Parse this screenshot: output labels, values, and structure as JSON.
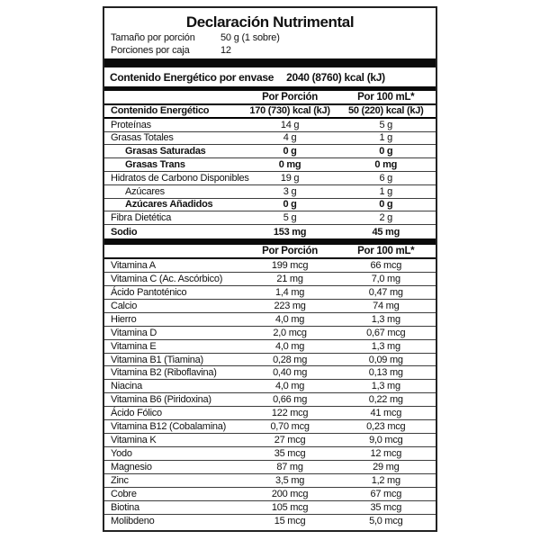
{
  "label": {
    "title": "Declaración Nutrimental",
    "serving_size": {
      "label": "Tamaño por porción",
      "value": "50 g (1 sobre)"
    },
    "servings_per_box": {
      "label": "Porciones por caja",
      "value": "12"
    },
    "energy_per_package": {
      "label": "Contenido Energético por envase",
      "value": "2040 (8760) kcal (kJ)"
    },
    "columns": {
      "per_portion": "Por Porción",
      "per_100ml": "Por 100 mL*"
    },
    "main_table": {
      "rows": [
        {
          "name": "Contenido Energético",
          "v1": "170 (730) kcal (kJ)",
          "v2": "50 (220) kcal (kJ)",
          "bold": true,
          "indent": 0,
          "sep": "thick"
        },
        {
          "name": "Proteínas",
          "v1": "14 g",
          "v2": "5 g",
          "bold": false,
          "indent": 0,
          "sep": "thin"
        },
        {
          "name": "Grasas Totales",
          "v1": "4 g",
          "v2": "1 g",
          "bold": false,
          "indent": 0,
          "sep": "thin"
        },
        {
          "name": "Grasas Saturadas",
          "v1": "0 g",
          "v2": "0 g",
          "bold": true,
          "indent": 1,
          "sep": "thin"
        },
        {
          "name": "Grasas Trans",
          "v1": "0 mg",
          "v2": "0 mg",
          "bold": true,
          "indent": 1,
          "sep": "thin"
        },
        {
          "name": "Hidratos de Carbono Disponibles",
          "v1": "19 g",
          "v2": "6 g",
          "bold": false,
          "indent": 0,
          "sep": "thin"
        },
        {
          "name": "Azúcares",
          "v1": "3 g",
          "v2": "1 g",
          "bold": false,
          "indent": 1,
          "sep": "thin"
        },
        {
          "name": "Azúcares Añadidos",
          "v1": "0 g",
          "v2": "0 g",
          "bold": true,
          "indent": 1,
          "sep": "thin"
        },
        {
          "name": "Fibra Dietética",
          "v1": "5 g",
          "v2": "2 g",
          "bold": false,
          "indent": 0,
          "sep": "thin"
        },
        {
          "name": "Sodio",
          "v1": "153 mg",
          "v2": "45 mg",
          "bold": true,
          "indent": 0,
          "sep": "none"
        }
      ]
    },
    "micro_table": {
      "rows": [
        {
          "name": "Vitamina A",
          "v1": "199 mcg",
          "v2": "66 mcg",
          "bold": false,
          "indent": 0,
          "sep": "thin"
        },
        {
          "name": "Vitamina C (Ac. Ascórbico)",
          "v1": "21 mg",
          "v2": "7,0 mg",
          "bold": false,
          "indent": 0,
          "sep": "thin"
        },
        {
          "name": "Ácido Pantoténico",
          "v1": "1,4 mg",
          "v2": "0,47 mg",
          "bold": false,
          "indent": 0,
          "sep": "thin"
        },
        {
          "name": "Calcio",
          "v1": "223 mg",
          "v2": "74 mg",
          "bold": false,
          "indent": 0,
          "sep": "thin"
        },
        {
          "name": "Hierro",
          "v1": "4,0 mg",
          "v2": "1,3 mg",
          "bold": false,
          "indent": 0,
          "sep": "thin"
        },
        {
          "name": "Vitamina D",
          "v1": "2,0 mcg",
          "v2": "0,67 mcg",
          "bold": false,
          "indent": 0,
          "sep": "thin"
        },
        {
          "name": "Vitamina E",
          "v1": "4,0 mg",
          "v2": "1,3 mg",
          "bold": false,
          "indent": 0,
          "sep": "thin"
        },
        {
          "name": "Vitamina B1 (Tiamina)",
          "v1": "0,28 mg",
          "v2": "0,09 mg",
          "bold": false,
          "indent": 0,
          "sep": "thin"
        },
        {
          "name": "Vitamina B2 (Riboflavina)",
          "v1": "0,40 mg",
          "v2": "0,13 mg",
          "bold": false,
          "indent": 0,
          "sep": "thin"
        },
        {
          "name": "Niacina",
          "v1": "4,0 mg",
          "v2": "1,3 mg",
          "bold": false,
          "indent": 0,
          "sep": "thin"
        },
        {
          "name": "Vitamina B6 (Piridoxina)",
          "v1": "0,66 mg",
          "v2": "0,22 mg",
          "bold": false,
          "indent": 0,
          "sep": "thin"
        },
        {
          "name": "Ácido Fólico",
          "v1": "122 mcg",
          "v2": "41 mcg",
          "bold": false,
          "indent": 0,
          "sep": "thin"
        },
        {
          "name": "Vitamina B12 (Cobalamina)",
          "v1": "0,70 mcg",
          "v2": "0,23 mcg",
          "bold": false,
          "indent": 0,
          "sep": "thin"
        },
        {
          "name": "Vitamina K",
          "v1": "27 mcg",
          "v2": "9,0 mcg",
          "bold": false,
          "indent": 0,
          "sep": "thin"
        },
        {
          "name": "Yodo",
          "v1": "35 mcg",
          "v2": "12 mcg",
          "bold": false,
          "indent": 0,
          "sep": "thin"
        },
        {
          "name": "Magnesio",
          "v1": "87 mg",
          "v2": "29 mg",
          "bold": false,
          "indent": 0,
          "sep": "thin"
        },
        {
          "name": "Zinc",
          "v1": "3,5 mg",
          "v2": "1,2 mg",
          "bold": false,
          "indent": 0,
          "sep": "thin"
        },
        {
          "name": "Cobre",
          "v1": "200 mcg",
          "v2": "67 mcg",
          "bold": false,
          "indent": 0,
          "sep": "thin"
        },
        {
          "name": "Biotina",
          "v1": "105 mcg",
          "v2": "35 mcg",
          "bold": false,
          "indent": 0,
          "sep": "thin"
        },
        {
          "name": "Molibdeno",
          "v1": "15 mcg",
          "v2": "5,0 mcg",
          "bold": false,
          "indent": 0,
          "sep": "none"
        }
      ]
    }
  }
}
